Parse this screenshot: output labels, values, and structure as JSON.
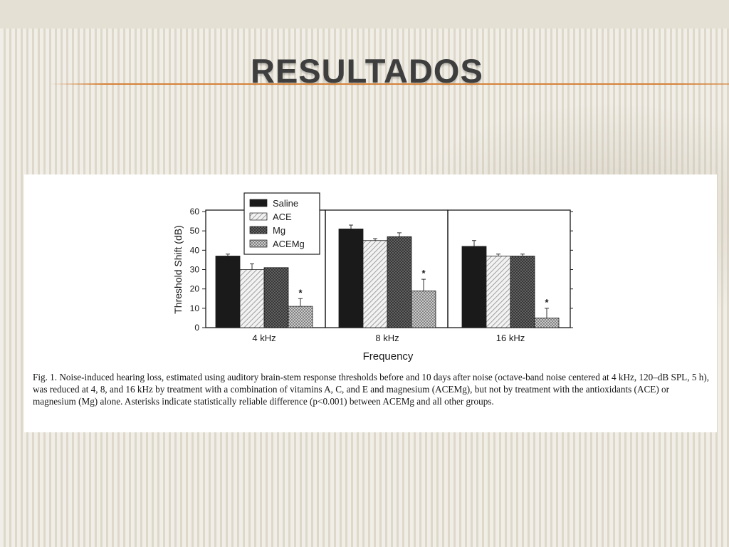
{
  "slide": {
    "title": "RESULTADOS"
  },
  "figure": {
    "caption": "Fig. 1. Noise-induced hearing loss, estimated using auditory brain-stem response thresholds before and 10 days after noise (octave-band noise centered at 4 kHz, 120–dB SPL, 5 h), was reduced at 4, 8, and 16 kHz by treatment with a combination of vitamins A, C, and E and magnesium (ACEMg), but not by treatment with the antioxidants (ACE) or magnesium (Mg) alone. Asterisks indicate statistically reliable difference (p<0.001) between ACEMg and all other groups."
  },
  "chart_data": {
    "type": "bar",
    "ylabel": "Threshold Shift (dB)",
    "xlabel": "Frequency",
    "ylim": [
      0,
      60
    ],
    "yticks": [
      0,
      10,
      20,
      30,
      40,
      50,
      60
    ],
    "categories": [
      "4 kHz",
      "8 kHz",
      "16 kHz"
    ],
    "legend_position": "top-left",
    "series": [
      {
        "name": "Saline",
        "pattern": "solid-black",
        "values": [
          37,
          51,
          42
        ],
        "errors": [
          1,
          2,
          3
        ]
      },
      {
        "name": "ACE",
        "pattern": "light-diagonal-hatch",
        "values": [
          30,
          45,
          37
        ],
        "errors": [
          3,
          1,
          1
        ]
      },
      {
        "name": "Mg",
        "pattern": "dark-crosshatch",
        "values": [
          31,
          47,
          37
        ],
        "errors": [
          0,
          2,
          1
        ]
      },
      {
        "name": "ACEMg",
        "pattern": "light-crosshatch",
        "values": [
          11,
          19,
          5
        ],
        "errors": [
          4,
          6,
          5
        ]
      }
    ],
    "significance_marker": "*",
    "significant_series": "ACEMg",
    "colors": {
      "ink": "#1a1a1a",
      "light_hatch": "#c8c8c8",
      "dark_hatch": "#3a3a3a"
    },
    "grid": false
  }
}
